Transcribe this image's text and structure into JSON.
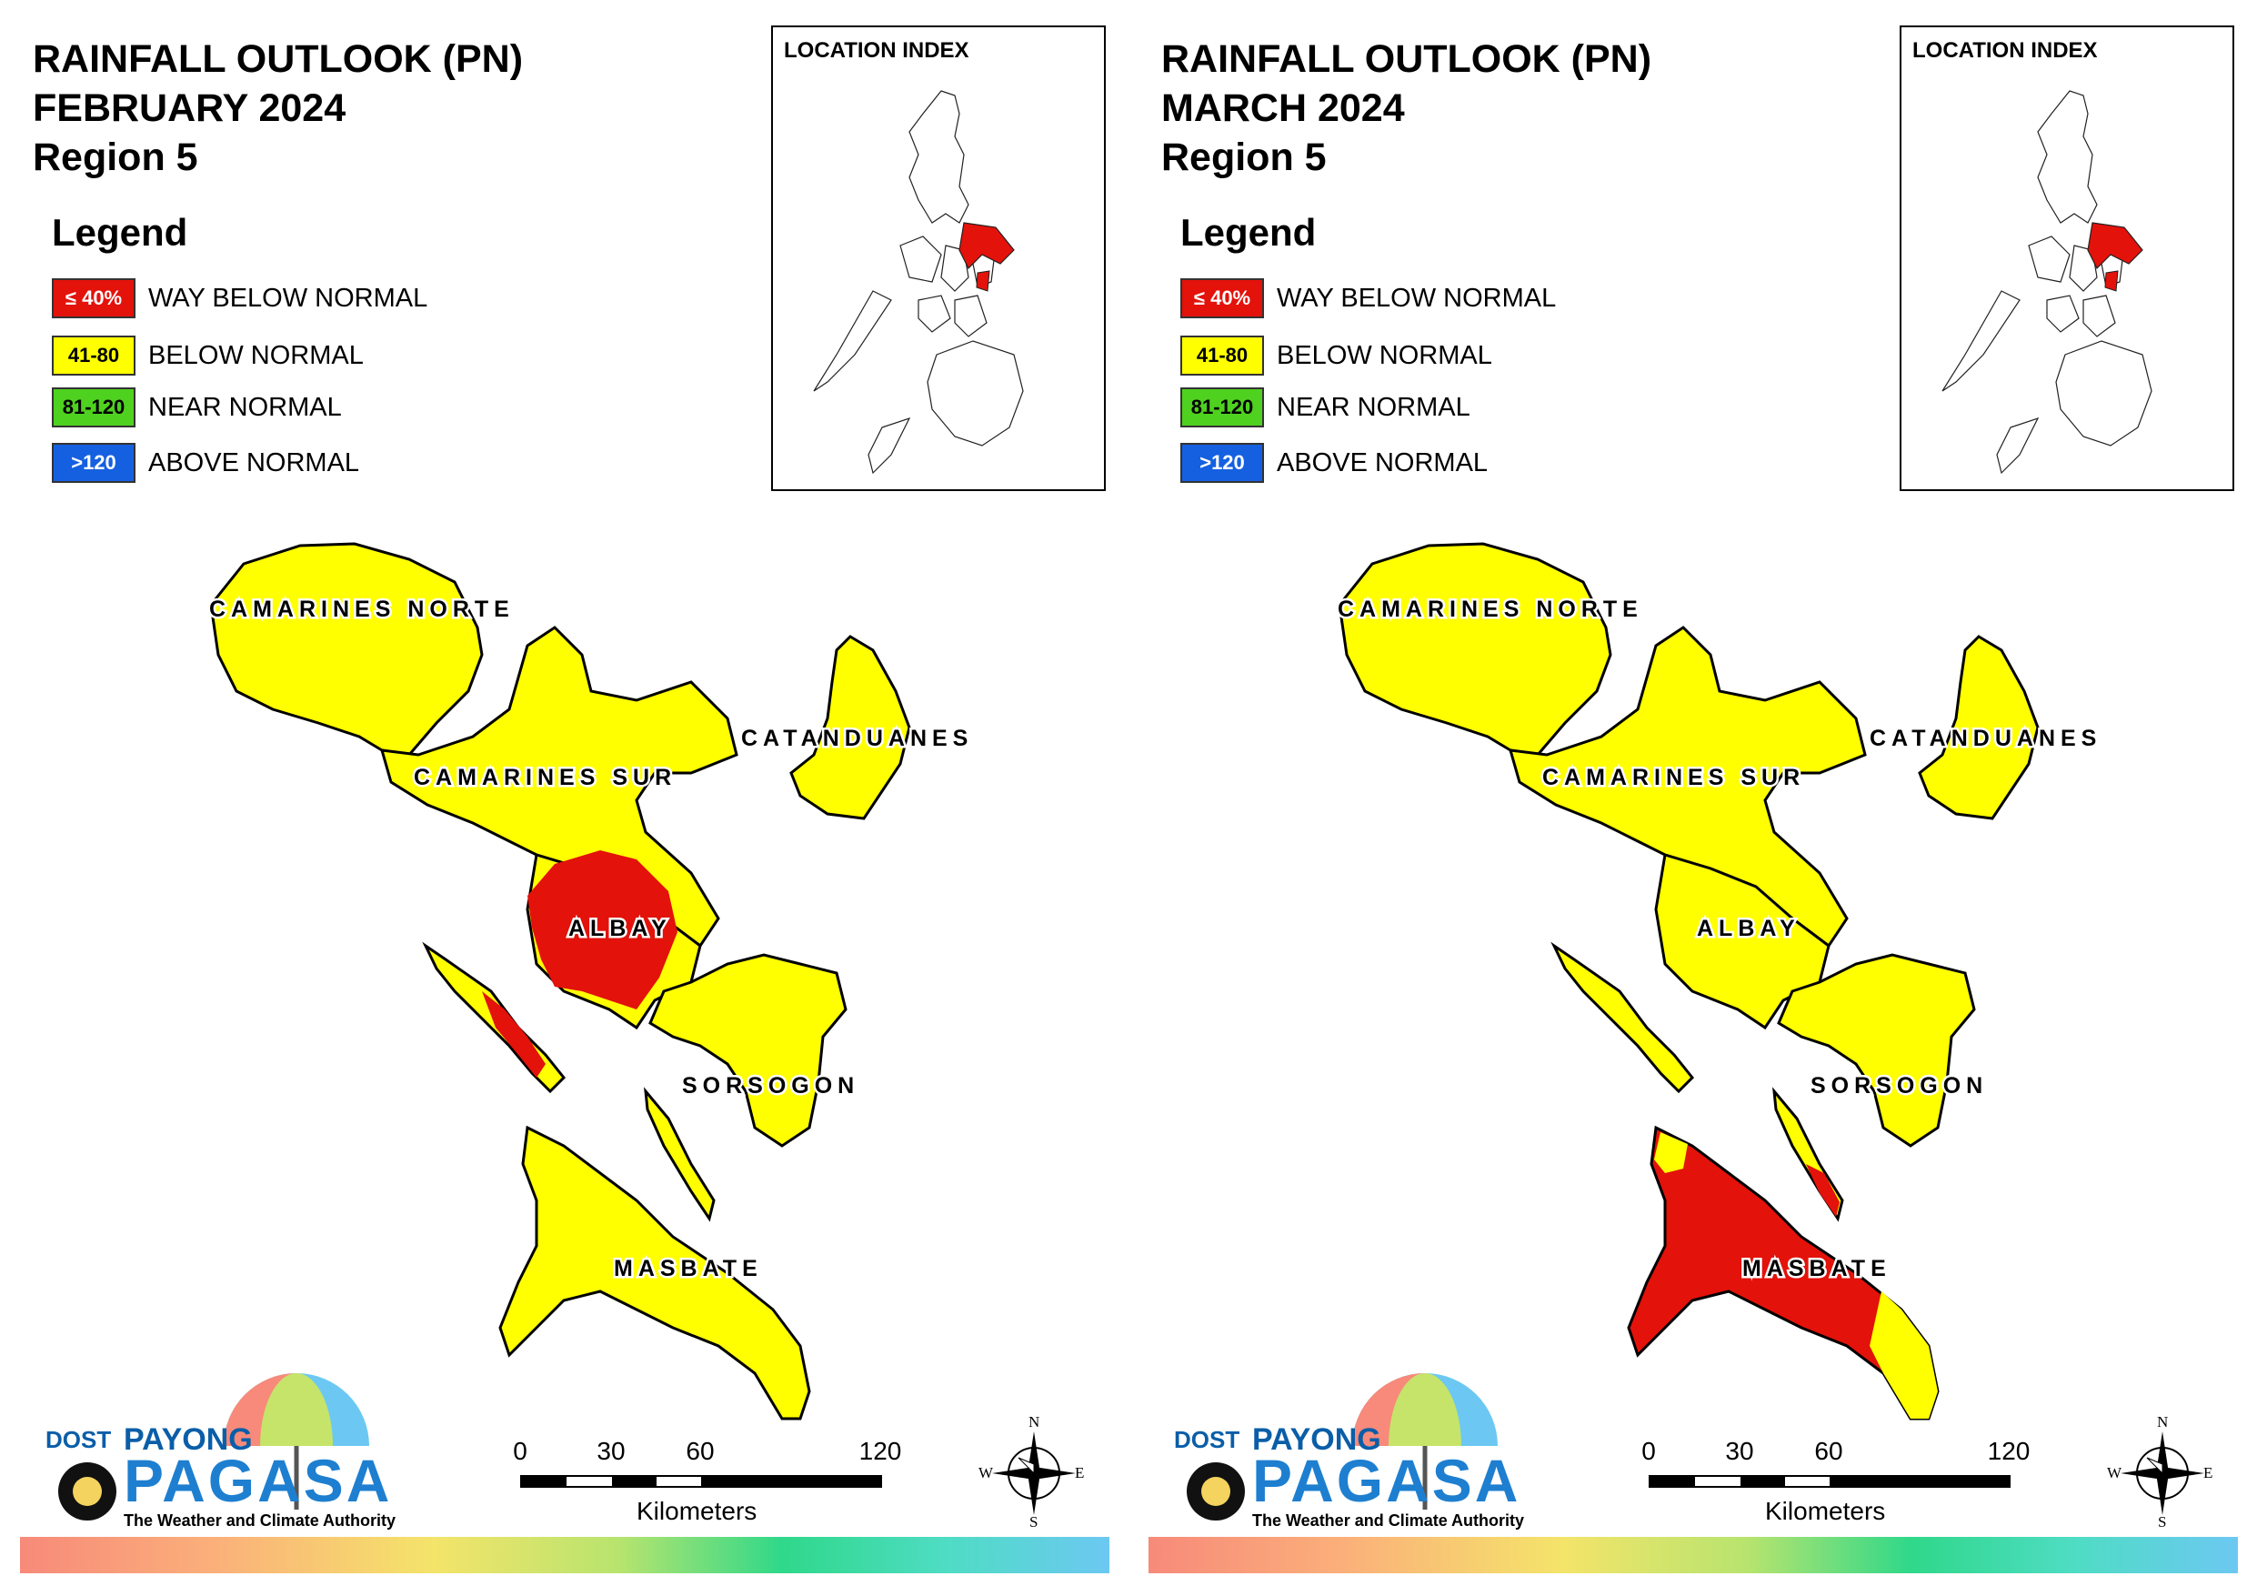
{
  "panels": [
    {
      "title_line1": "RAINFALL OUTLOOK (PN)",
      "title_line2": "FEBRUARY 2024",
      "title_line3": "Region 5",
      "index_title": "LOCATION INDEX",
      "provinces": {
        "camarines_norte": "CAMARINES NORTE",
        "camarines_sur": "CAMARINES SUR",
        "catanduanes": "CATANDUANES",
        "albay": "ALBAY",
        "sorsogon": "SORSOGON",
        "masbate": "MASBATE"
      },
      "province_outlook": {
        "camarines_norte": "BELOW NORMAL",
        "camarines_sur": "BELOW NORMAL",
        "catanduanes": "BELOW NORMAL",
        "albay": "WAY BELOW NORMAL",
        "sorsogon": "BELOW NORMAL",
        "masbate": "BELOW NORMAL"
      }
    },
    {
      "title_line1": "RAINFALL OUTLOOK (PN)",
      "title_line2": "MARCH 2024",
      "title_line3": "Region 5",
      "index_title": "LOCATION INDEX",
      "provinces": {
        "camarines_norte": "CAMARINES NORTE",
        "camarines_sur": "CAMARINES SUR",
        "catanduanes": "CATANDUANES",
        "albay": "ALBAY",
        "sorsogon": "SORSOGON",
        "masbate": "MASBATE"
      },
      "province_outlook": {
        "camarines_norte": "BELOW NORMAL",
        "camarines_sur": "BELOW NORMAL",
        "catanduanes": "BELOW NORMAL",
        "albay": "BELOW NORMAL",
        "sorsogon": "BELOW NORMAL",
        "masbate": "WAY BELOW NORMAL"
      }
    }
  ],
  "legend": {
    "title": "Legend",
    "items": [
      {
        "range": "≤ 40%",
        "label": "WAY BELOW NORMAL",
        "color": "#e3120b",
        "text_color": "#ffffff"
      },
      {
        "range": "41-80",
        "label": "BELOW NORMAL",
        "color": "#ffff00",
        "text_color": "#000000"
      },
      {
        "range": "81-120",
        "label": "NEAR NORMAL",
        "color": "#4fd11f",
        "text_color": "#000000"
      },
      {
        "range": ">120",
        "label": "ABOVE NORMAL",
        "color": "#1560e0",
        "text_color": "#ffffff"
      }
    ]
  },
  "scale_bar": {
    "ticks": [
      "0",
      "30",
      "60",
      "120"
    ],
    "unit": "Kilometers"
  },
  "compass": {
    "n": "N",
    "e": "E",
    "s": "S",
    "w": "W"
  },
  "logo": {
    "dost": "DOST",
    "payong": "PAYONG",
    "pagasa": "PAGASA",
    "tagline": "The Weather and Climate Authority"
  },
  "colors": {
    "way_below": "#e3120b",
    "below": "#ffff00",
    "near": "#4fd11f",
    "above": "#1560e0",
    "outline": "#000000"
  }
}
